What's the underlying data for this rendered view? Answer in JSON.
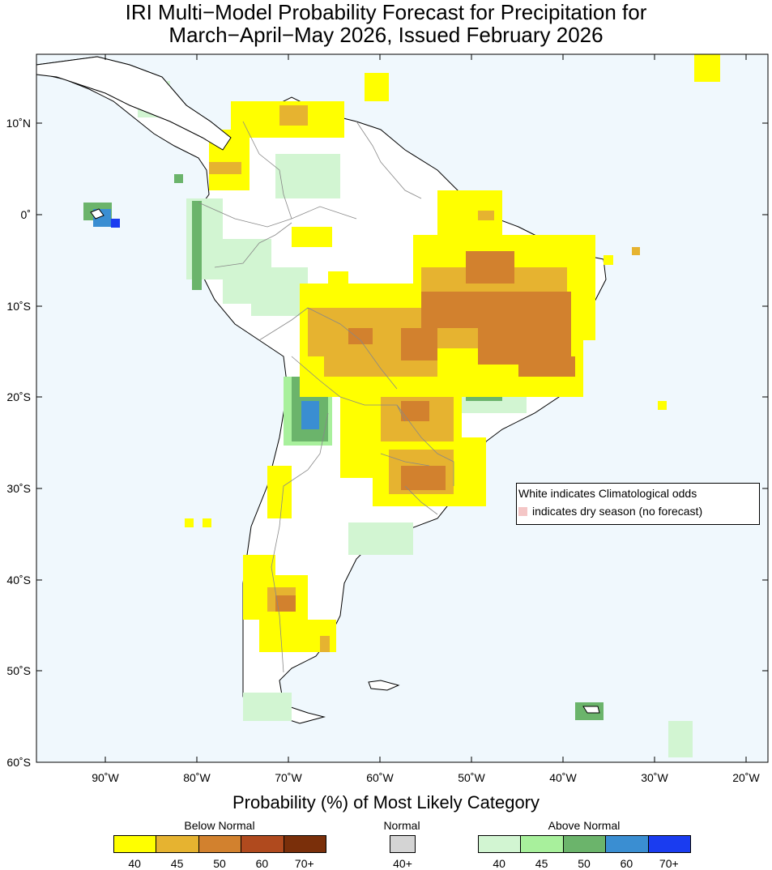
{
  "title_line1": "IRI Multi−Model Probability Forecast for Precipitation for",
  "title_line2": "March−April−May 2026, Issued February 2026",
  "lat_labels": [
    "10˚N",
    "0˚",
    "10˚S",
    "20˚S",
    "30˚S",
    "40˚S",
    "50˚S",
    "60˚S"
  ],
  "lon_labels": [
    "90˚W",
    "80˚W",
    "70˚W",
    "60˚W",
    "50˚W",
    "40˚W",
    "30˚W",
    "20˚W"
  ],
  "legend": {
    "line1": "White indicates Climatological odds",
    "line2": "indicates dry season (no forecast)"
  },
  "colorbar": {
    "title": "Probability (%) of Most Likely Category",
    "below_normal": {
      "label": "Below Normal",
      "colors": [
        "#ffff00",
        "#e6b330",
        "#d2812e",
        "#b04a1e",
        "#7a2f0a"
      ],
      "ticks": [
        "40",
        "45",
        "50",
        "60",
        "70+"
      ]
    },
    "normal": {
      "label": "Normal",
      "color": "#d4d4d4",
      "tick": "40+"
    },
    "above_normal": {
      "label": "Above Normal",
      "colors": [
        "#d2f5d2",
        "#a8f09c",
        "#6bb46b",
        "#3a8ed2",
        "#1a3cf0"
      ],
      "ticks": [
        "40",
        "45",
        "50",
        "60",
        "70+"
      ]
    }
  },
  "colors": {
    "ocean": "#f0f8fd",
    "land": "#ffffff",
    "border": "#888888",
    "coast": "#000000"
  }
}
